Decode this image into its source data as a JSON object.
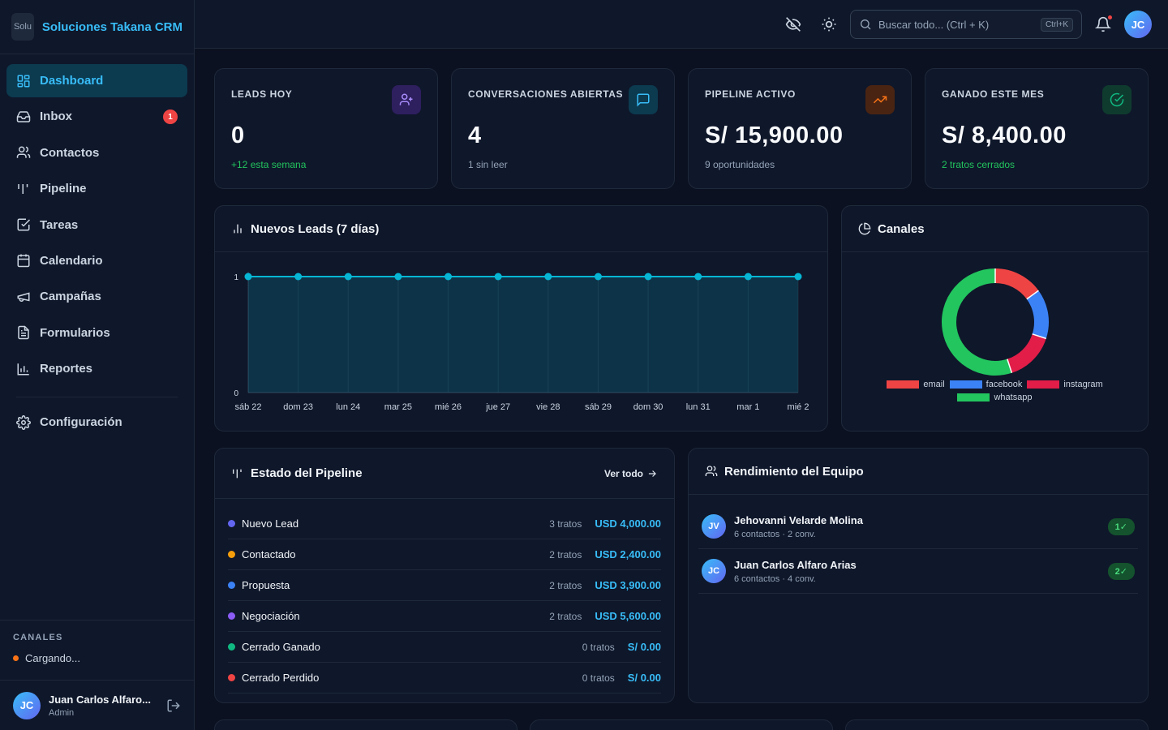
{
  "brand": {
    "name": "Soluciones Takana CRM",
    "logo_alt": "Solu"
  },
  "nav": {
    "items": [
      {
        "label": "Dashboard",
        "icon": "dashboard-icon",
        "active": true
      },
      {
        "label": "Inbox",
        "icon": "inbox-icon",
        "badge": "1"
      },
      {
        "label": "Contactos",
        "icon": "contacts-icon"
      },
      {
        "label": "Pipeline",
        "icon": "pipeline-icon"
      },
      {
        "label": "Tareas",
        "icon": "tasks-icon"
      },
      {
        "label": "Calendario",
        "icon": "calendar-icon"
      },
      {
        "label": "Campañas",
        "icon": "megaphone-icon"
      },
      {
        "label": "Formularios",
        "icon": "form-icon"
      },
      {
        "label": "Reportes",
        "icon": "reports-icon"
      }
    ],
    "settings": {
      "label": "Configuración",
      "icon": "settings-icon"
    }
  },
  "channels": {
    "title": "CANALES",
    "status": "Cargando..."
  },
  "user": {
    "initials": "JC",
    "name": "Juan Carlos Alfaro...",
    "role": "Admin"
  },
  "topbar": {
    "search_placeholder": "Buscar todo... (Ctrl + K)",
    "search_shortcut": "Ctrl+K",
    "avatar_initials": "JC"
  },
  "stats": [
    {
      "label": "LEADS HOY",
      "value": "0",
      "sub": "+12 esta semana",
      "icon": "user-plus-icon",
      "color": "#8b5cf6"
    },
    {
      "label": "CONVERSACIONES ABIERTAS",
      "value": "4",
      "sub": "1 sin leer",
      "icon": "chat-icon",
      "color": "#0ea5e9"
    },
    {
      "label": "PIPELINE ACTIVO",
      "value": "S/ 15,900.00",
      "sub": "9 oportunidades",
      "icon": "trending-up-icon",
      "color": "#f97316"
    },
    {
      "label": "GANADO ESTE MES",
      "value": "S/ 8,400.00",
      "sub": "2 tratos cerrados",
      "icon": "check-circle-icon",
      "color": "#10b981"
    }
  ],
  "leads_chart": {
    "title": "Nuevos Leads (7 días)",
    "chart_data": {
      "type": "area",
      "categories": [
        "sáb 22",
        "dom 23",
        "lun 24",
        "mar 25",
        "mié 26",
        "jue 27",
        "vie 28",
        "sáb 29",
        "dom 30",
        "lun 31",
        "mar 1",
        "mié 2"
      ],
      "values": [
        1,
        1,
        1,
        1,
        1,
        1,
        1,
        1,
        1,
        1,
        1,
        1
      ],
      "yticks": [
        "0",
        "1"
      ],
      "ylim": [
        0,
        1
      ],
      "color": "#06b6d4",
      "grid": true
    }
  },
  "channels_chart": {
    "title": "Canales",
    "chart_data": {
      "type": "pie",
      "series": [
        {
          "name": "email",
          "value": 15,
          "color": "#ef4444"
        },
        {
          "name": "facebook",
          "value": 15,
          "color": "#3b82f6"
        },
        {
          "name": "instagram",
          "value": 15,
          "color": "#e11d48"
        },
        {
          "name": "whatsapp",
          "value": 55,
          "color": "#22c55e"
        }
      ]
    }
  },
  "pipeline": {
    "title": "Estado del Pipeline",
    "link": "Ver todo",
    "stages": [
      {
        "name": "Nuevo Lead",
        "count": "3 tratos",
        "amount": "USD 4,000.00",
        "color": "#6366f1"
      },
      {
        "name": "Contactado",
        "count": "2 tratos",
        "amount": "USD 2,400.00",
        "color": "#f59e0b"
      },
      {
        "name": "Propuesta",
        "count": "2 tratos",
        "amount": "USD 3,900.00",
        "color": "#3b82f6"
      },
      {
        "name": "Negociación",
        "count": "2 tratos",
        "amount": "USD 5,600.00",
        "color": "#8b5cf6"
      },
      {
        "name": "Cerrado Ganado",
        "count": "0 tratos",
        "amount": "S/ 0.00",
        "color": "#10b981"
      },
      {
        "name": "Cerrado Perdido",
        "count": "0 tratos",
        "amount": "S/ 0.00",
        "color": "#ef4444"
      }
    ]
  },
  "team": {
    "title": "Rendimiento del Equipo",
    "members": [
      {
        "initials": "JV",
        "name": "Jehovanni Velarde Molina",
        "sub": "6 contactos · 2 conv.",
        "badge": "1✓"
      },
      {
        "initials": "JC",
        "name": "Juan Carlos Alfaro Arias",
        "sub": "6 contactos · 4 conv.",
        "badge": "2✓"
      }
    ]
  }
}
